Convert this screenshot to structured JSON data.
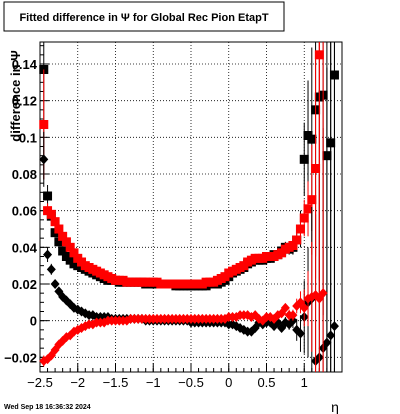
{
  "chart_data": {
    "type": "scatter",
    "title": "Fitted difference in  Ψ  for Global Rec Pion EtapT",
    "xlabel": "η",
    "ylabel": "difference in Ψ",
    "xlim": [
      -2.5,
      1.5
    ],
    "ylim": [
      -0.028,
      0.152
    ],
    "grid": true,
    "xticks": [
      -2.5,
      -2,
      -1.5,
      -1,
      -0.5,
      0,
      0.5,
      1
    ],
    "xtick_labels": [
      "−2.5",
      "−2",
      "−1.5",
      "−1",
      "−0.5",
      "0",
      "0.5",
      "1"
    ],
    "yticks": [
      -0.02,
      0,
      0.02,
      0.04,
      0.06,
      0.08,
      0.1,
      0.12,
      0.14
    ],
    "ytick_labels": [
      "−0.02",
      "0",
      "0.02",
      "0.04",
      "0.06",
      "0.08",
      "0.1",
      "0.12",
      "0.14"
    ],
    "footer": "Wed Sep 18 16:36:32 2024",
    "series": [
      {
        "marker": "square",
        "color": "#000000",
        "x": [
          -2.45,
          -2.4,
          -2.35,
          -2.3,
          -2.25,
          -2.2,
          -2.15,
          -2.1,
          -2.05,
          -2.0,
          -1.95,
          -1.9,
          -1.85,
          -1.8,
          -1.75,
          -1.7,
          -1.65,
          -1.6,
          -1.55,
          -1.5,
          -1.45,
          -1.4,
          -1.35,
          -1.3,
          -1.25,
          -1.2,
          -1.15,
          -1.1,
          -1.05,
          -1.0,
          -0.95,
          -0.9,
          -0.85,
          -0.8,
          -0.75,
          -0.7,
          -0.65,
          -0.6,
          -0.55,
          -0.5,
          -0.45,
          -0.4,
          -0.35,
          -0.3,
          -0.25,
          -0.2,
          -0.15,
          -0.1,
          -0.05,
          0.0,
          0.05,
          0.1,
          0.15,
          0.2,
          0.25,
          0.3,
          0.35,
          0.4,
          0.45,
          0.5,
          0.55,
          0.6,
          0.65,
          0.7,
          0.75,
          0.8,
          0.85,
          0.9,
          0.95,
          1.0,
          1.05,
          1.1,
          1.15,
          1.2,
          1.25,
          1.3,
          1.35,
          1.4
        ],
        "y": [
          0.137,
          0.068,
          0.057,
          0.048,
          0.043,
          0.038,
          0.035,
          0.033,
          0.031,
          0.03,
          0.029,
          0.028,
          0.027,
          0.026,
          0.025,
          0.024,
          0.023,
          0.022,
          0.022,
          0.022,
          0.021,
          0.021,
          0.021,
          0.021,
          0.021,
          0.021,
          0.021,
          0.02,
          0.02,
          0.02,
          0.02,
          0.02,
          0.02,
          0.02,
          0.02,
          0.019,
          0.019,
          0.019,
          0.019,
          0.019,
          0.019,
          0.019,
          0.019,
          0.019,
          0.02,
          0.02,
          0.02,
          0.021,
          0.022,
          0.024,
          0.026,
          0.027,
          0.028,
          0.029,
          0.031,
          0.032,
          0.033,
          0.033,
          0.033,
          0.034,
          0.034,
          0.036,
          0.036,
          0.038,
          0.04,
          0.039,
          0.04,
          0.044,
          0.05,
          0.088,
          0.101,
          0.099,
          0.115,
          0.122,
          0.123,
          0.09,
          0.097,
          0.134
        ],
        "err": [
          0.06,
          0.006,
          0.003,
          0.002,
          0.002,
          0.002,
          0.001,
          0.001,
          0.001,
          0.001,
          0.001,
          0.001,
          0.001,
          0.001,
          0.001,
          0.001,
          0.001,
          0.001,
          0.001,
          0.001,
          0.001,
          0.001,
          0.001,
          0.001,
          0.001,
          0.001,
          0.001,
          0.001,
          0.001,
          0.001,
          0.001,
          0.001,
          0.001,
          0.001,
          0.001,
          0.001,
          0.001,
          0.001,
          0.001,
          0.001,
          0.001,
          0.001,
          0.001,
          0.001,
          0.001,
          0.001,
          0.001,
          0.001,
          0.001,
          0.001,
          0.001,
          0.001,
          0.001,
          0.001,
          0.001,
          0.001,
          0.001,
          0.001,
          0.001,
          0.001,
          0.001,
          0.002,
          0.002,
          0.002,
          0.003,
          0.003,
          0.004,
          0.006,
          0.01,
          0.02,
          0.03,
          0.05,
          0.08,
          0.1,
          0.12,
          0.15,
          0.2,
          0.2
        ]
      },
      {
        "marker": "square",
        "color": "#ff0000",
        "x": [
          -2.45,
          -2.4,
          -2.35,
          -2.3,
          -2.25,
          -2.2,
          -2.15,
          -2.1,
          -2.05,
          -2.0,
          -1.95,
          -1.9,
          -1.85,
          -1.8,
          -1.75,
          -1.7,
          -1.65,
          -1.6,
          -1.55,
          -1.5,
          -1.45,
          -1.4,
          -1.35,
          -1.3,
          -1.25,
          -1.2,
          -1.15,
          -1.1,
          -1.05,
          -1.0,
          -0.95,
          -0.9,
          -0.85,
          -0.8,
          -0.75,
          -0.7,
          -0.65,
          -0.6,
          -0.55,
          -0.5,
          -0.45,
          -0.4,
          -0.35,
          -0.3,
          -0.25,
          -0.2,
          -0.15,
          -0.1,
          -0.05,
          0.0,
          0.05,
          0.1,
          0.15,
          0.2,
          0.25,
          0.3,
          0.35,
          0.4,
          0.45,
          0.5,
          0.55,
          0.6,
          0.65,
          0.7,
          0.75,
          0.8,
          0.85,
          0.9,
          0.95,
          1.0,
          1.05,
          1.1,
          1.15,
          1.2
        ],
        "y": [
          0.107,
          0.06,
          0.058,
          0.054,
          0.05,
          0.046,
          0.043,
          0.04,
          0.037,
          0.034,
          0.032,
          0.03,
          0.029,
          0.028,
          0.027,
          0.026,
          0.025,
          0.024,
          0.023,
          0.022,
          0.022,
          0.022,
          0.021,
          0.021,
          0.021,
          0.021,
          0.021,
          0.021,
          0.021,
          0.021,
          0.021,
          0.02,
          0.02,
          0.02,
          0.02,
          0.02,
          0.02,
          0.02,
          0.02,
          0.02,
          0.02,
          0.02,
          0.02,
          0.021,
          0.021,
          0.021,
          0.022,
          0.023,
          0.024,
          0.026,
          0.027,
          0.028,
          0.029,
          0.03,
          0.032,
          0.033,
          0.034,
          0.034,
          0.034,
          0.035,
          0.035,
          0.035,
          0.036,
          0.037,
          0.039,
          0.04,
          0.041,
          0.044,
          0.05,
          0.056,
          0.061,
          0.066,
          0.083,
          0.145
        ],
        "err": [
          0.03,
          0.004,
          0.003,
          0.002,
          0.002,
          0.002,
          0.001,
          0.001,
          0.001,
          0.001,
          0.001,
          0.001,
          0.001,
          0.001,
          0.001,
          0.001,
          0.001,
          0.001,
          0.001,
          0.001,
          0.001,
          0.001,
          0.001,
          0.001,
          0.001,
          0.001,
          0.001,
          0.001,
          0.001,
          0.001,
          0.001,
          0.001,
          0.001,
          0.001,
          0.001,
          0.001,
          0.001,
          0.001,
          0.001,
          0.001,
          0.001,
          0.001,
          0.001,
          0.001,
          0.001,
          0.001,
          0.001,
          0.001,
          0.001,
          0.001,
          0.001,
          0.001,
          0.001,
          0.001,
          0.001,
          0.001,
          0.001,
          0.001,
          0.001,
          0.001,
          0.001,
          0.001,
          0.002,
          0.002,
          0.002,
          0.003,
          0.003,
          0.004,
          0.006,
          0.01,
          0.015,
          0.03,
          0.06,
          0.15
        ]
      },
      {
        "marker": "diamond",
        "color": "#000000",
        "x": [
          -2.45,
          -2.4,
          -2.35,
          -2.3,
          -2.25,
          -2.2,
          -2.15,
          -2.1,
          -2.05,
          -2.0,
          -1.95,
          -1.9,
          -1.85,
          -1.8,
          -1.75,
          -1.7,
          -1.65,
          -1.6,
          -1.55,
          -1.5,
          -1.45,
          -1.4,
          -1.35,
          -1.3,
          -1.25,
          -1.2,
          -1.15,
          -1.1,
          -1.05,
          -1.0,
          -0.95,
          -0.9,
          -0.85,
          -0.8,
          -0.75,
          -0.7,
          -0.65,
          -0.6,
          -0.55,
          -0.5,
          -0.45,
          -0.4,
          -0.35,
          -0.3,
          -0.25,
          -0.2,
          -0.15,
          -0.1,
          -0.05,
          0.0,
          0.05,
          0.1,
          0.15,
          0.2,
          0.25,
          0.3,
          0.35,
          0.4,
          0.45,
          0.5,
          0.55,
          0.6,
          0.65,
          0.7,
          0.75,
          0.8,
          0.85,
          0.9,
          0.95,
          1.0,
          1.05,
          1.1,
          1.15,
          1.2,
          1.25,
          1.3,
          1.35,
          1.4
        ],
        "y": [
          0.088,
          0.036,
          0.028,
          0.02,
          0.016,
          0.013,
          0.011,
          0.009,
          0.007,
          0.006,
          0.005,
          0.004,
          0.003,
          0.003,
          0.002,
          0.002,
          0.002,
          0.002,
          0.001,
          0.001,
          0.001,
          0.001,
          0.001,
          0.001,
          0.001,
          0.001,
          0.001,
          0.0,
          0.0,
          0.0,
          0.0,
          0.0,
          0.0,
          0.0,
          0.0,
          0.0,
          0.0,
          0.0,
          0.0,
          -0.001,
          -0.001,
          -0.001,
          -0.001,
          -0.001,
          -0.001,
          -0.001,
          -0.001,
          -0.001,
          -0.001,
          -0.002,
          -0.002,
          -0.003,
          -0.004,
          -0.005,
          -0.006,
          -0.006,
          -0.004,
          -0.001,
          -0.002,
          -0.001,
          -0.001,
          -0.003,
          -0.001,
          -0.004,
          -0.001,
          -0.002,
          0.0,
          -0.005,
          -0.007,
          0.002,
          0.01,
          0.012,
          -0.022,
          -0.02,
          -0.015,
          -0.012,
          -0.008,
          -0.003
        ],
        "err": [
          0.015,
          0.004,
          0.003,
          0.002,
          0.002,
          0.002,
          0.001,
          0.001,
          0.001,
          0.001,
          0.001,
          0.001,
          0.001,
          0.001,
          0.001,
          0.001,
          0.001,
          0.001,
          0.001,
          0.001,
          0.001,
          0.001,
          0.001,
          0.001,
          0.001,
          0.001,
          0.001,
          0.001,
          0.001,
          0.001,
          0.001,
          0.001,
          0.001,
          0.001,
          0.001,
          0.001,
          0.001,
          0.001,
          0.001,
          0.001,
          0.001,
          0.001,
          0.001,
          0.001,
          0.001,
          0.001,
          0.001,
          0.001,
          0.001,
          0.001,
          0.001,
          0.001,
          0.001,
          0.001,
          0.001,
          0.001,
          0.001,
          0.001,
          0.001,
          0.001,
          0.001,
          0.002,
          0.002,
          0.002,
          0.003,
          0.003,
          0.004,
          0.006,
          0.01,
          0.02,
          0.03,
          0.05,
          0.08,
          0.1,
          0.12,
          0.15,
          0.2,
          0.2
        ]
      },
      {
        "marker": "diamond",
        "color": "#ff0000",
        "x": [
          -2.45,
          -2.4,
          -2.35,
          -2.3,
          -2.25,
          -2.2,
          -2.15,
          -2.1,
          -2.05,
          -2.0,
          -1.95,
          -1.9,
          -1.85,
          -1.8,
          -1.75,
          -1.7,
          -1.65,
          -1.6,
          -1.55,
          -1.5,
          -1.45,
          -1.4,
          -1.35,
          -1.3,
          -1.25,
          -1.2,
          -1.15,
          -1.1,
          -1.05,
          -1.0,
          -0.95,
          -0.9,
          -0.85,
          -0.8,
          -0.75,
          -0.7,
          -0.65,
          -0.6,
          -0.55,
          -0.5,
          -0.45,
          -0.4,
          -0.35,
          -0.3,
          -0.25,
          -0.2,
          -0.15,
          -0.1,
          -0.05,
          0.0,
          0.05,
          0.1,
          0.15,
          0.2,
          0.25,
          0.3,
          0.35,
          0.4,
          0.45,
          0.5,
          0.55,
          0.6,
          0.65,
          0.7,
          0.75,
          0.8,
          0.85,
          0.9,
          0.95,
          1.0,
          1.05,
          1.1,
          1.15,
          1.2,
          1.25
        ],
        "y": [
          -0.022,
          -0.021,
          -0.019,
          -0.016,
          -0.013,
          -0.011,
          -0.009,
          -0.008,
          -0.006,
          -0.005,
          -0.004,
          -0.003,
          -0.002,
          -0.002,
          -0.001,
          -0.001,
          -0.001,
          0.0,
          0.0,
          0.0,
          0.0,
          0.0,
          0.0,
          0.001,
          0.001,
          0.001,
          0.001,
          0.001,
          0.001,
          0.001,
          0.001,
          0.001,
          0.001,
          0.001,
          0.001,
          0.001,
          0.001,
          0.001,
          0.001,
          0.001,
          0.001,
          0.001,
          0.001,
          0.001,
          0.001,
          0.001,
          0.001,
          0.001,
          0.001,
          0.002,
          0.002,
          0.002,
          0.003,
          0.003,
          0.003,
          0.002,
          0.003,
          0.001,
          0.0,
          0.002,
          0.002,
          0.001,
          0.003,
          0.004,
          0.007,
          0.003,
          0.003,
          0.008,
          0.01,
          0.007,
          0.012,
          0.013,
          0.014,
          0.012,
          0.015
        ],
        "err": [
          0.003,
          0.002,
          0.002,
          0.002,
          0.002,
          0.001,
          0.001,
          0.001,
          0.001,
          0.001,
          0.001,
          0.001,
          0.001,
          0.001,
          0.001,
          0.001,
          0.001,
          0.001,
          0.001,
          0.001,
          0.001,
          0.001,
          0.001,
          0.001,
          0.001,
          0.001,
          0.001,
          0.001,
          0.001,
          0.001,
          0.001,
          0.001,
          0.001,
          0.001,
          0.001,
          0.001,
          0.001,
          0.001,
          0.001,
          0.001,
          0.001,
          0.001,
          0.001,
          0.001,
          0.001,
          0.001,
          0.001,
          0.001,
          0.001,
          0.001,
          0.001,
          0.001,
          0.001,
          0.001,
          0.001,
          0.001,
          0.001,
          0.001,
          0.001,
          0.001,
          0.001,
          0.001,
          0.002,
          0.002,
          0.002,
          0.003,
          0.003,
          0.004,
          0.006,
          0.01,
          0.015,
          0.03,
          0.06,
          0.15,
          0.15
        ]
      }
    ]
  }
}
